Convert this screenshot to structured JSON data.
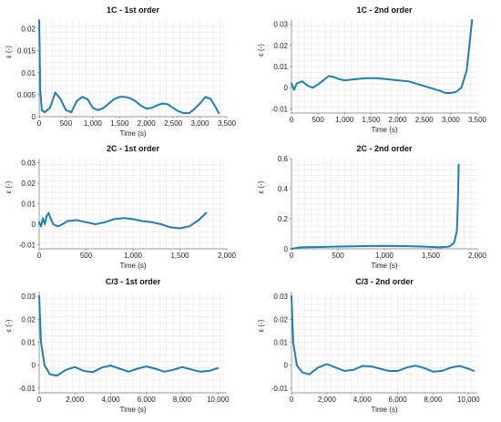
{
  "colors": {
    "series": "#1f7fb4",
    "grid": "#e3e3e3"
  },
  "chart_data": [
    {
      "type": "line",
      "title": "1C - 1st order",
      "xlabel": "Time (s)",
      "ylabel": "ε (-)",
      "xlim": [
        0,
        3500
      ],
      "ylim": [
        0,
        0.022
      ],
      "xticks": [
        0,
        500,
        1000,
        1500,
        2000,
        2500,
        3000,
        3500
      ],
      "xtick_labels": [
        "0",
        "500",
        "1,000",
        "1,500",
        "2,000",
        "2,500",
        "3,000",
        "3,500"
      ],
      "yticks": [
        0,
        0.005,
        0.01,
        0.015,
        0.02
      ],
      "ytick_labels": [
        "0",
        "0.005",
        "0.01",
        "0.015",
        "0.02"
      ],
      "grid": true,
      "series": [
        {
          "x": [
            0,
            20,
            50,
            100,
            200,
            300,
            400,
            500,
            600,
            700,
            800,
            900,
            1000,
            1100,
            1200,
            1300,
            1400,
            1500,
            1600,
            1700,
            1800,
            1900,
            2000,
            2100,
            2200,
            2300,
            2400,
            2500,
            2600,
            2700,
            2800,
            2900,
            3000,
            3100,
            3200,
            3300,
            3350
          ],
          "y": [
            0.022,
            0.006,
            0.0015,
            0.001,
            0.002,
            0.0055,
            0.004,
            0.0015,
            0.001,
            0.0035,
            0.0045,
            0.004,
            0.002,
            0.0015,
            0.002,
            0.003,
            0.004,
            0.0045,
            0.0045,
            0.0042,
            0.0035,
            0.0025,
            0.0018,
            0.002,
            0.0026,
            0.003,
            0.0028,
            0.002,
            0.0012,
            0.0008,
            0.0008,
            0.0018,
            0.003,
            0.0045,
            0.004,
            0.002,
            0.0008
          ]
        }
      ]
    },
    {
      "type": "line",
      "title": "1C - 2nd order",
      "xlabel": "Time (s)",
      "ylabel": "ε (-)",
      "xlim": [
        0,
        3500
      ],
      "ylim": [
        -0.012,
        0.032
      ],
      "xticks": [
        0,
        500,
        1000,
        1500,
        2000,
        2500,
        3000,
        3500
      ],
      "xtick_labels": [
        "0",
        "500",
        "1,000",
        "1,500",
        "2,000",
        "2,500",
        "3,000",
        "3,500"
      ],
      "yticks": [
        -0.01,
        0,
        0.01,
        0.02,
        0.03
      ],
      "ytick_labels": [
        "-0.01",
        "0",
        "0.01",
        "0.02",
        "0.03"
      ],
      "grid": true,
      "series": [
        {
          "x": [
            0,
            50,
            100,
            200,
            300,
            400,
            500,
            600,
            700,
            800,
            900,
            1000,
            1200,
            1400,
            1600,
            1800,
            2000,
            2200,
            2400,
            2600,
            2800,
            2900,
            3000,
            3100,
            3200,
            3300,
            3350,
            3400
          ],
          "y": [
            0.002,
            -0.001,
            0.002,
            0.003,
            0.001,
            0.0,
            0.0015,
            0.0035,
            0.0055,
            0.005,
            0.004,
            0.0035,
            0.004,
            0.0045,
            0.0045,
            0.004,
            0.0035,
            0.003,
            0.0015,
            0.0,
            -0.0015,
            -0.0025,
            -0.0025,
            -0.002,
            0.0,
            0.008,
            0.02,
            0.032
          ]
        }
      ]
    },
    {
      "type": "line",
      "title": "2C - 1st order",
      "xlabel": "Time (s)",
      "ylabel": "ε (-)",
      "xlim": [
        0,
        2000
      ],
      "ylim": [
        -0.012,
        0.032
      ],
      "xticks": [
        0,
        500,
        1000,
        1500,
        2000
      ],
      "xtick_labels": [
        "0",
        "500",
        "1,000",
        "1,500",
        "2,000"
      ],
      "yticks": [
        -0.01,
        0,
        0.01,
        0.02,
        0.03
      ],
      "ytick_labels": [
        "-0.01",
        "0",
        "0.01",
        "0.02",
        "0.03"
      ],
      "grid": true,
      "series": [
        {
          "x": [
            0,
            20,
            40,
            60,
            80,
            100,
            120,
            150,
            200,
            250,
            300,
            400,
            500,
            600,
            700,
            800,
            900,
            1000,
            1100,
            1200,
            1300,
            1400,
            1500,
            1600,
            1700,
            1780
          ],
          "y": [
            0.001,
            -0.001,
            0.003,
            0.0,
            0.004,
            0.0055,
            0.003,
            0.0,
            -0.001,
            0.0,
            0.0015,
            0.002,
            0.001,
            0.0,
            0.001,
            0.0025,
            0.003,
            0.0025,
            0.0015,
            0.001,
            0.0,
            -0.0015,
            -0.002,
            -0.001,
            0.002,
            0.0055
          ]
        }
      ]
    },
    {
      "type": "line",
      "title": "2C - 2nd order",
      "xlabel": "Time (s)",
      "ylabel": "ε (-)",
      "xlim": [
        0,
        2000
      ],
      "ylim": [
        0,
        0.6
      ],
      "xticks": [
        0,
        500,
        1000,
        1500,
        2000
      ],
      "xtick_labels": [
        "0",
        "500",
        "1,000",
        "1,500",
        "2,000"
      ],
      "yticks": [
        0,
        0.2,
        0.4,
        0.6
      ],
      "ytick_labels": [
        "0",
        "0.2",
        "0.4",
        "0.6"
      ],
      "grid": true,
      "series": [
        {
          "x": [
            0,
            100,
            300,
            500,
            800,
            1000,
            1200,
            1400,
            1600,
            1700,
            1750,
            1780,
            1790,
            1800
          ],
          "y": [
            0.0,
            0.01,
            0.012,
            0.015,
            0.018,
            0.02,
            0.018,
            0.015,
            0.01,
            0.015,
            0.04,
            0.12,
            0.3,
            0.56
          ]
        }
      ]
    },
    {
      "type": "line",
      "title": "C/3 - 1st order",
      "xlabel": "Time (s)",
      "ylabel": "ε (-)",
      "xlim": [
        0,
        10500
      ],
      "ylim": [
        -0.012,
        0.032
      ],
      "xticks": [
        0,
        2000,
        4000,
        6000,
        8000,
        10000
      ],
      "xtick_labels": [
        "0",
        "2,000",
        "4,000",
        "6,000",
        "8,000",
        "10,000"
      ],
      "yticks": [
        -0.01,
        0,
        0.01,
        0.02,
        0.03
      ],
      "ytick_labels": [
        "-0.01",
        "0",
        "0.01",
        "0.02",
        "0.03"
      ],
      "grid": true,
      "series": [
        {
          "x": [
            0,
            100,
            300,
            600,
            1000,
            1500,
            2000,
            2500,
            3000,
            3500,
            4000,
            4500,
            5000,
            5500,
            6000,
            6500,
            7000,
            7500,
            8000,
            8500,
            9000,
            9500,
            10000
          ],
          "y": [
            0.03,
            0.01,
            0.0,
            -0.004,
            -0.0045,
            -0.002,
            -0.0008,
            -0.0025,
            -0.003,
            -0.001,
            -0.0001,
            -0.0015,
            -0.0028,
            -0.0015,
            -0.0005,
            -0.0015,
            -0.0028,
            -0.002,
            -0.0008,
            -0.0018,
            -0.0028,
            -0.0025,
            -0.0012
          ]
        }
      ]
    },
    {
      "type": "line",
      "title": "C/3 - 2nd order",
      "xlabel": "Time (s)",
      "ylabel": "ε (-)",
      "xlim": [
        0,
        10500
      ],
      "ylim": [
        -0.012,
        0.032
      ],
      "xticks": [
        0,
        2000,
        4000,
        6000,
        8000,
        10000
      ],
      "xtick_labels": [
        "0",
        "2,000",
        "4,000",
        "6,000",
        "8,000",
        "10,000"
      ],
      "yticks": [
        -0.01,
        0,
        0.01,
        0.02,
        0.03
      ],
      "ytick_labels": [
        "-0.01",
        "0",
        "0.01",
        "0.02",
        "0.03"
      ],
      "grid": true,
      "series": [
        {
          "x": [
            0,
            100,
            300,
            600,
            1000,
            1500,
            2000,
            2500,
            3000,
            3500,
            4000,
            4500,
            5000,
            5500,
            6000,
            6500,
            7000,
            7500,
            8000,
            8500,
            9000,
            9500,
            10000,
            10300
          ],
          "y": [
            0.03,
            0.01,
            0.0,
            -0.003,
            -0.004,
            -0.001,
            0.0005,
            -0.001,
            -0.0025,
            -0.002,
            -0.0003,
            -0.0005,
            -0.0015,
            -0.0025,
            -0.0025,
            -0.001,
            -0.0002,
            -0.0012,
            -0.0028,
            -0.0025,
            -0.001,
            -0.0003,
            -0.0015,
            -0.0025
          ]
        }
      ]
    }
  ]
}
